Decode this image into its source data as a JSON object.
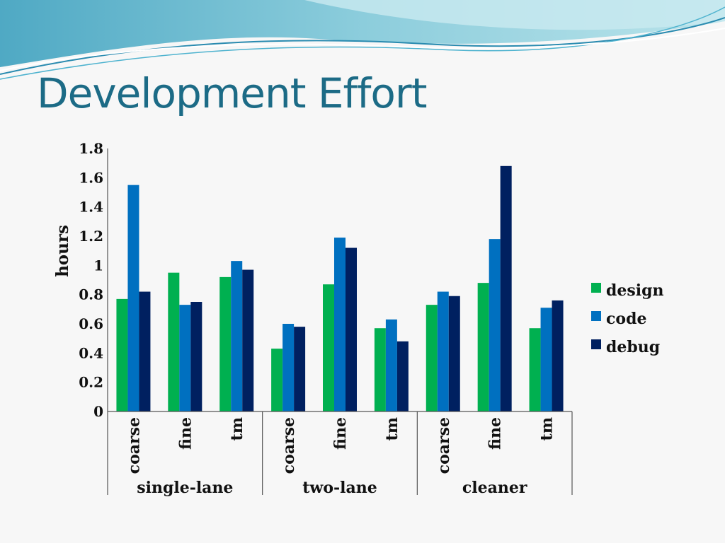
{
  "slide": {
    "title": "Development Effort"
  },
  "colors": {
    "design": "#00b050",
    "code": "#0070c0",
    "debug": "#002060",
    "title": "#1c6b86"
  },
  "chart_data": {
    "type": "bar",
    "ylabel": "hours",
    "ylim": [
      0,
      1.8
    ],
    "yticks": [
      "0",
      "0.2",
      "0.4",
      "0.6",
      "0.8",
      "1",
      "1.2",
      "1.4",
      "1.6",
      "1.8"
    ],
    "groups": [
      {
        "name": "single-lane",
        "categories": [
          "coarse",
          "fine",
          "tm"
        ]
      },
      {
        "name": "two-lane",
        "categories": [
          "coarse",
          "fine",
          "tm"
        ]
      },
      {
        "name": "cleaner",
        "categories": [
          "coarse",
          "fine",
          "tm"
        ]
      }
    ],
    "series": [
      {
        "name": "design",
        "values": [
          0.77,
          0.95,
          0.92,
          0.43,
          0.87,
          0.57,
          0.73,
          0.88,
          0.57
        ]
      },
      {
        "name": "code",
        "values": [
          1.55,
          0.73,
          1.03,
          0.6,
          1.19,
          0.63,
          0.82,
          1.18,
          0.71
        ]
      },
      {
        "name": "debug",
        "values": [
          0.82,
          0.75,
          0.97,
          0.58,
          1.12,
          0.48,
          0.79,
          1.68,
          0.76
        ]
      }
    ],
    "legend_position": "right",
    "grid": false
  }
}
